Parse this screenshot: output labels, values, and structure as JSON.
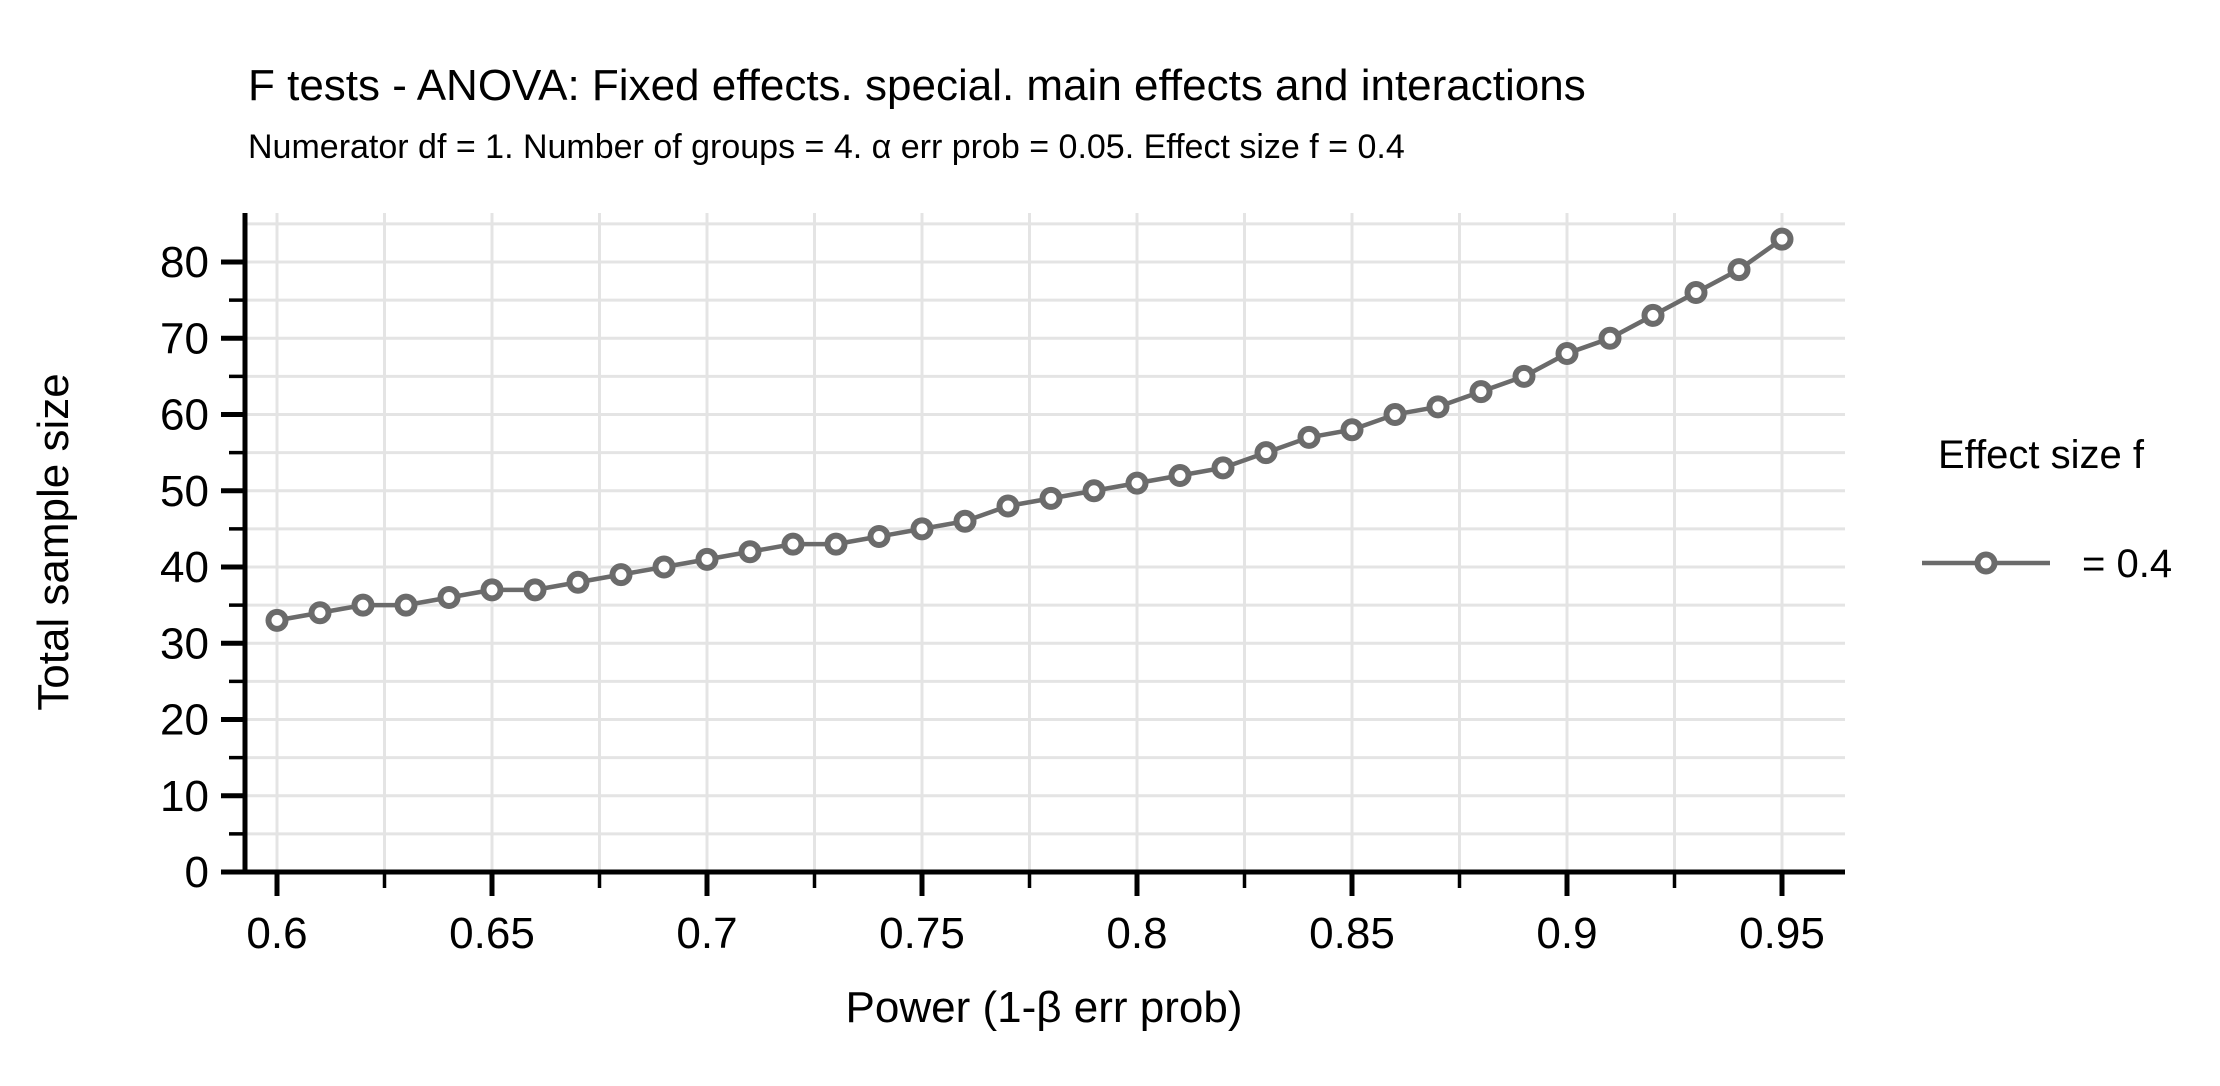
{
  "title": "F tests - ANOVA: Fixed effects. special. main effects and interactions",
  "subtitle": "Numerator df = 1. Number of groups = 4. α err prob = 0.05. Effect size f = 0.4",
  "legend": {
    "title": "Effect size f",
    "entries": [
      {
        "label": "= 0.4",
        "marker": "open-circle-icon",
        "color": "#6b6b6b"
      }
    ]
  },
  "colors": {
    "background": "#ffffff",
    "axis": "#000000",
    "grid": "#e4e4e4",
    "series": "#6b6b6b",
    "marker_fill": "#ffffff",
    "text": "#000000"
  },
  "chart_data": {
    "type": "line",
    "title": "F tests - ANOVA: Fixed effects. special. main effects and interactions",
    "subtitle": "Numerator df = 1. Number of groups = 4. α err prob = 0.05. Effect size f = 0.4",
    "xlabel": "Power (1-β err prob)",
    "ylabel": "Total sample size",
    "x": [
      0.6,
      0.61,
      0.62,
      0.63,
      0.64,
      0.65,
      0.66,
      0.67,
      0.68,
      0.69,
      0.7,
      0.71,
      0.72,
      0.73,
      0.74,
      0.75,
      0.76,
      0.77,
      0.78,
      0.79,
      0.8,
      0.81,
      0.82,
      0.83,
      0.84,
      0.85,
      0.86,
      0.87,
      0.88,
      0.89,
      0.9,
      0.91,
      0.92,
      0.93,
      0.94,
      0.95
    ],
    "series": [
      {
        "name": "= 0.4",
        "values": [
          33,
          34,
          35,
          35,
          36,
          37,
          37,
          38,
          39,
          40,
          41,
          42,
          43,
          43,
          44,
          45,
          46,
          48,
          49,
          50,
          51,
          52,
          53,
          55,
          57,
          58,
          60,
          61,
          63,
          65,
          68,
          70,
          73,
          76,
          79,
          83
        ]
      }
    ],
    "x_tick_labels": [
      "0.6",
      "0.65",
      "0.7",
      "0.75",
      "0.8",
      "0.85",
      "0.9",
      "0.95"
    ],
    "x_major_ticks": [
      0.6,
      0.65,
      0.7,
      0.75,
      0.8,
      0.85,
      0.9,
      0.95
    ],
    "x_minor_ticks": [
      0.625,
      0.675,
      0.725,
      0.775,
      0.825,
      0.875,
      0.925
    ],
    "y_major_ticks": [
      0,
      10,
      20,
      30,
      40,
      50,
      60,
      70,
      80
    ],
    "y_minor_ticks": [
      5,
      15,
      25,
      35,
      45,
      55,
      65,
      75
    ],
    "x_grid_step": 0.025,
    "y_grid_step": 5,
    "xlim": [
      0.5926,
      0.9647
    ],
    "ylim": [
      0,
      86.5
    ],
    "grid": true,
    "legend_position": "right"
  }
}
